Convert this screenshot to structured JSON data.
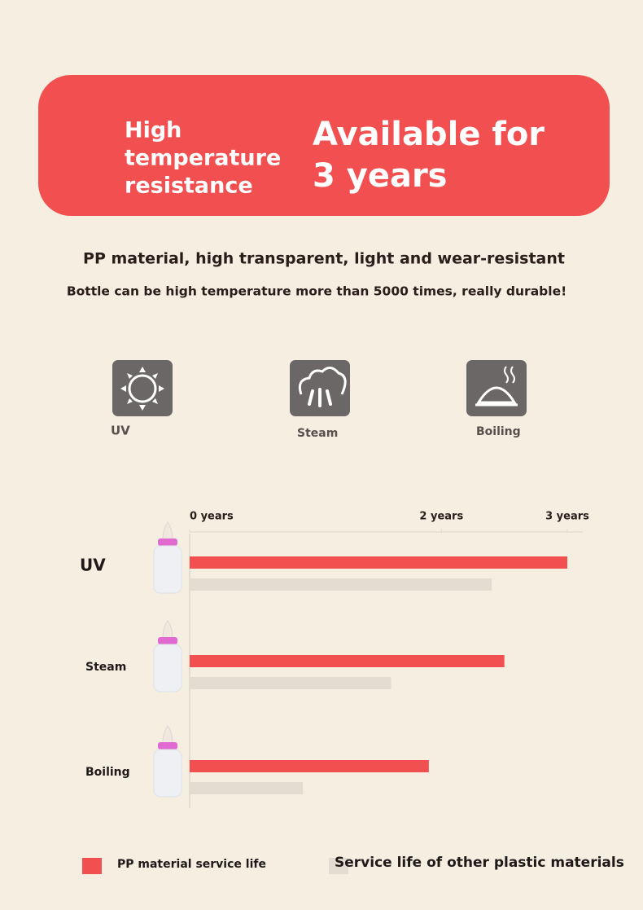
{
  "banner": {
    "left_lines": [
      "High",
      "temperature",
      "resistance"
    ],
    "right_lines": [
      "Available for",
      "3 years"
    ]
  },
  "headline": "PP material, high transparent, light and wear-resistant",
  "subheadline": "Bottle can be high temperature more than 5000 times, really durable!",
  "icons": [
    {
      "label": "UV"
    },
    {
      "label": "Steam"
    },
    {
      "label": "Boiling"
    }
  ],
  "chart_data": {
    "type": "bar",
    "orientation": "horizontal",
    "categories": [
      "UV",
      "Steam",
      "Boiling"
    ],
    "series": [
      {
        "name": "PP material service life",
        "color": "#f25050",
        "values": [
          3.0,
          2.5,
          1.9
        ]
      },
      {
        "name": "Service life of other plastic materials",
        "color": "#e3dcd1",
        "values": [
          2.4,
          1.6,
          0.9
        ]
      }
    ],
    "xlim": [
      0,
      3
    ],
    "xticks": [
      {
        "value": 0,
        "label": "0 years"
      },
      {
        "value": 2,
        "label": "2 years"
      },
      {
        "value": 3,
        "label": "3 years"
      }
    ],
    "legend": "bottom"
  }
}
